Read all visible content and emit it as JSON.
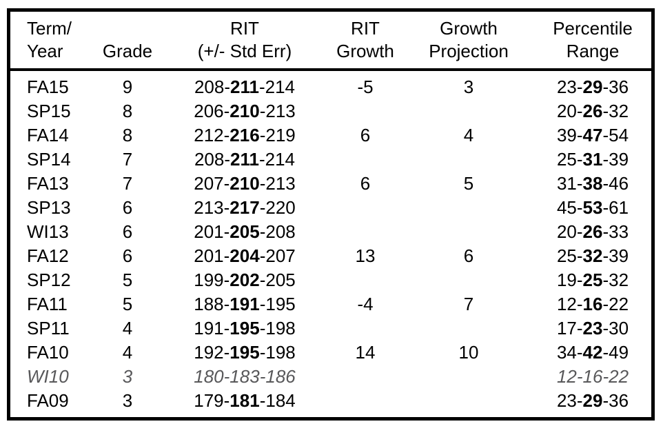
{
  "colors": {
    "border": "#000000",
    "text": "#000000",
    "muted_row_text": "#58585a",
    "background": "#ffffff"
  },
  "table": {
    "separator": "-",
    "columns": [
      {
        "line1": "Term/",
        "line2": "Year"
      },
      {
        "line1": "",
        "line2": "Grade"
      },
      {
        "line1": "RIT",
        "line2": "(+/- Std Err)"
      },
      {
        "line1": "RIT",
        "line2": "Growth"
      },
      {
        "line1": "Growth",
        "line2": "Projection"
      },
      {
        "line1": "Percentile",
        "line2": "Range"
      }
    ],
    "rows": [
      {
        "term": "FA15",
        "grade": "9",
        "rit": {
          "low": "208",
          "mid": "211",
          "high": "214"
        },
        "growth": "-5",
        "projection": "3",
        "percentile": {
          "low": "23",
          "mid": "29",
          "high": "36"
        }
      },
      {
        "term": "SP15",
        "grade": "8",
        "rit": {
          "low": "206",
          "mid": "210",
          "high": "213"
        },
        "growth": "",
        "projection": "",
        "percentile": {
          "low": "20",
          "mid": "26",
          "high": "32"
        }
      },
      {
        "term": "FA14",
        "grade": "8",
        "rit": {
          "low": "212",
          "mid": "216",
          "high": "219"
        },
        "growth": "6",
        "projection": "4",
        "percentile": {
          "low": "39",
          "mid": "47",
          "high": "54"
        }
      },
      {
        "term": "SP14",
        "grade": "7",
        "rit": {
          "low": "208",
          "mid": "211",
          "high": "214"
        },
        "growth": "",
        "projection": "",
        "percentile": {
          "low": "25",
          "mid": "31",
          "high": "39"
        }
      },
      {
        "term": "FA13",
        "grade": "7",
        "rit": {
          "low": "207",
          "mid": "210",
          "high": "213"
        },
        "growth": "6",
        "projection": "5",
        "percentile": {
          "low": "31",
          "mid": "38",
          "high": "46"
        }
      },
      {
        "term": "SP13",
        "grade": "6",
        "rit": {
          "low": "213",
          "mid": "217",
          "high": "220"
        },
        "growth": "",
        "projection": "",
        "percentile": {
          "low": "45",
          "mid": "53",
          "high": "61"
        }
      },
      {
        "term": "WI13",
        "grade": "6",
        "rit": {
          "low": "201",
          "mid": "205",
          "high": "208"
        },
        "growth": "",
        "projection": "",
        "percentile": {
          "low": "20",
          "mid": "26",
          "high": "33"
        }
      },
      {
        "term": "FA12",
        "grade": "6",
        "rit": {
          "low": "201",
          "mid": "204",
          "high": "207"
        },
        "growth": "13",
        "projection": "6",
        "percentile": {
          "low": "25",
          "mid": "32",
          "high": "39"
        }
      },
      {
        "term": "SP12",
        "grade": "5",
        "rit": {
          "low": "199",
          "mid": "202",
          "high": "205"
        },
        "growth": "",
        "projection": "",
        "percentile": {
          "low": "19",
          "mid": "25",
          "high": "32"
        }
      },
      {
        "term": "FA11",
        "grade": "5",
        "rit": {
          "low": "188",
          "mid": "191",
          "high": "195"
        },
        "growth": "-4",
        "projection": "7",
        "percentile": {
          "low": "12",
          "mid": "16",
          "high": "22"
        }
      },
      {
        "term": "SP11",
        "grade": "4",
        "rit": {
          "low": "191",
          "mid": "195",
          "high": "198"
        },
        "growth": "",
        "projection": "",
        "percentile": {
          "low": "17",
          "mid": "23",
          "high": "30"
        }
      },
      {
        "term": "FA10",
        "grade": "4",
        "rit": {
          "low": "192",
          "mid": "195",
          "high": "198"
        },
        "growth": "14",
        "projection": "10",
        "percentile": {
          "low": "34",
          "mid": "42",
          "high": "49"
        }
      },
      {
        "term": "WI10",
        "grade": "3",
        "rit": {
          "low": "180",
          "mid": "183",
          "high": "186"
        },
        "growth": "",
        "projection": "",
        "percentile": {
          "low": "12",
          "mid": "16",
          "high": "22"
        },
        "muted": true
      },
      {
        "term": "FA09",
        "grade": "3",
        "rit": {
          "low": "179",
          "mid": "181",
          "high": "184"
        },
        "growth": "",
        "projection": "",
        "percentile": {
          "low": "23",
          "mid": "29",
          "high": "36"
        }
      }
    ]
  }
}
